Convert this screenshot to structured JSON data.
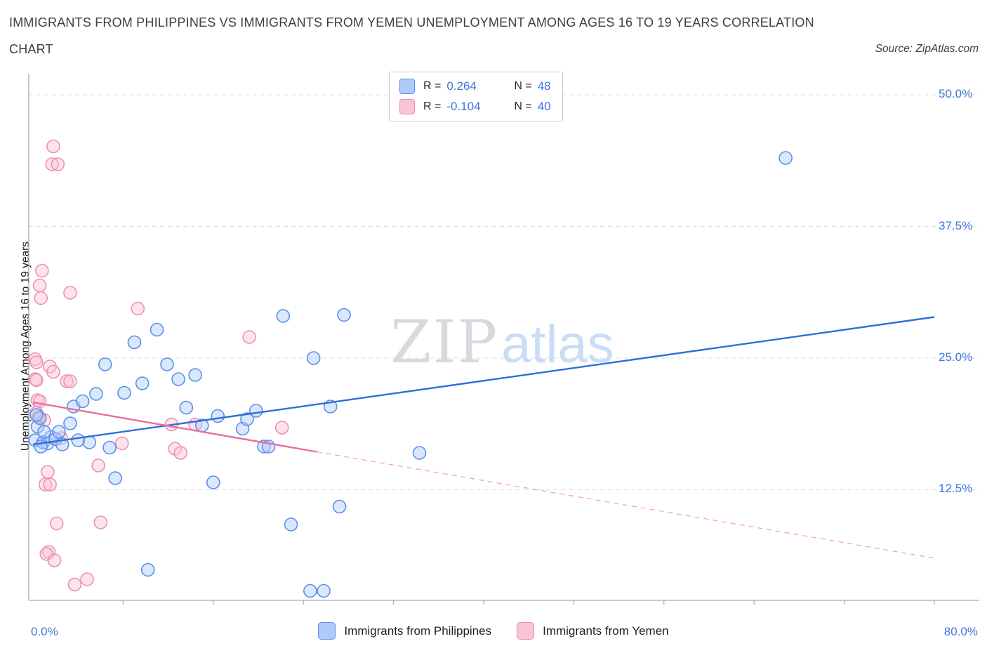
{
  "header": {
    "title_line1": "IMMIGRANTS FROM PHILIPPINES VS IMMIGRANTS FROM YEMEN UNEMPLOYMENT AMONG AGES 16 TO 19 YEARS CORRELATION",
    "title_line2": "CHART",
    "source": "Source: ZipAtlas.com"
  },
  "legend_box": {
    "rows": [
      {
        "series": "philippines",
        "r_label": "R =",
        "r_value": "0.264",
        "n_label": "N =",
        "n_value": "48"
      },
      {
        "series": "yemen",
        "r_label": "R =",
        "r_value": "-0.104",
        "n_label": "N =",
        "n_value": "40"
      }
    ]
  },
  "watermark": {
    "zip": "ZIP",
    "atlas": "atlas"
  },
  "axes": {
    "y_label": "Unemployment Among Ages 16 to 19 years",
    "y_ticks": [
      {
        "value": 50,
        "label": "50.0%"
      },
      {
        "value": 37.5,
        "label": "37.5%"
      },
      {
        "value": 25,
        "label": "25.0%"
      },
      {
        "value": 12.5,
        "label": "12.5%"
      }
    ],
    "x_min_label": "0.0%",
    "x_max_label": "80.0%"
  },
  "bottom_legend": [
    {
      "series": "philippines",
      "label": "Immigrants from Philippines"
    },
    {
      "series": "yemen",
      "label": "Immigrants from Yemen"
    }
  ],
  "colors": {
    "philippines_fill": "#AECBFA",
    "philippines_stroke": "#5E8FE8",
    "philippines_trend": "#2E6FD8",
    "yemen_fill": "#F9C4D8",
    "yemen_stroke": "#EE8FB4",
    "yemen_trend": "#E8709A",
    "axis_label_blue": "#3D77D9",
    "grid": "#DCDCDC",
    "axis_line": "#A6ABB0"
  },
  "chart_data": {
    "type": "scatter",
    "title": "Immigrants from Philippines vs Immigrants from Yemen Unemployment Among Ages 16 to 19 years Correlation Chart",
    "xlabel": "",
    "ylabel": "Unemployment Among Ages 16 to 19 years",
    "x_range": [
      0,
      80
    ],
    "y_range": [
      2,
      52
    ],
    "gridlines_y": [
      12.5,
      25,
      37.5,
      50
    ],
    "x_tick_step": 8,
    "legend_position": "bottom",
    "series": [
      {
        "id": "philippines",
        "name": "Immigrants from Philippines",
        "r": 0.264,
        "n": 48,
        "points": [
          [
            0.2,
            17.2
          ],
          [
            0.4,
            18.5
          ],
          [
            0.6,
            19.3
          ],
          [
            0.9,
            17.0
          ],
          [
            1.3,
            16.9
          ],
          [
            1.6,
            17.5
          ],
          [
            2.0,
            17.3
          ],
          [
            3.3,
            18.8
          ],
          [
            3.6,
            20.4
          ],
          [
            4.4,
            20.9
          ],
          [
            2.6,
            16.8
          ],
          [
            5.0,
            17.0
          ],
          [
            5.6,
            21.6
          ],
          [
            6.4,
            24.4
          ],
          [
            6.8,
            16.5
          ],
          [
            7.3,
            13.6
          ],
          [
            8.1,
            21.7
          ],
          [
            9.0,
            26.5
          ],
          [
            9.7,
            22.6
          ],
          [
            10.2,
            4.9
          ],
          [
            11.0,
            27.7
          ],
          [
            11.9,
            24.4
          ],
          [
            12.9,
            23.0
          ],
          [
            13.6,
            20.3
          ],
          [
            14.4,
            23.4
          ],
          [
            15.0,
            18.6
          ],
          [
            16.0,
            13.2
          ],
          [
            16.4,
            19.5
          ],
          [
            18.6,
            18.3
          ],
          [
            19.0,
            19.2
          ],
          [
            19.8,
            20.0
          ],
          [
            20.5,
            16.6
          ],
          [
            20.9,
            16.6
          ],
          [
            22.2,
            29.0
          ],
          [
            22.9,
            9.2
          ],
          [
            24.6,
            2.9
          ],
          [
            25.8,
            2.9
          ],
          [
            24.9,
            25.0
          ],
          [
            26.4,
            20.4
          ],
          [
            27.6,
            29.1
          ],
          [
            27.2,
            10.9
          ],
          [
            34.3,
            16.0
          ],
          [
            66.8,
            44.0
          ],
          [
            0.3,
            19.6
          ],
          [
            1.0,
            18.0
          ],
          [
            2.3,
            18.0
          ],
          [
            4.0,
            17.2
          ],
          [
            0.7,
            16.6
          ]
        ],
        "trend_solid": [
          [
            0,
            16.8
          ],
          [
            80,
            28.9
          ]
        ],
        "trend_dashed": null
      },
      {
        "id": "yemen",
        "name": "Immigrants from Yemen",
        "r": -0.104,
        "n": 40,
        "points": [
          [
            1.8,
            45.1
          ],
          [
            1.7,
            43.4
          ],
          [
            2.2,
            43.4
          ],
          [
            0.8,
            33.3
          ],
          [
            0.6,
            31.9
          ],
          [
            0.7,
            30.7
          ],
          [
            3.3,
            31.2
          ],
          [
            9.3,
            29.7
          ],
          [
            19.2,
            27.0
          ],
          [
            0.2,
            24.9
          ],
          [
            0.3,
            24.6
          ],
          [
            0.2,
            23.0
          ],
          [
            0.3,
            22.9
          ],
          [
            1.5,
            24.2
          ],
          [
            1.8,
            23.7
          ],
          [
            3.0,
            22.8
          ],
          [
            3.3,
            22.8
          ],
          [
            0.4,
            21.0
          ],
          [
            0.6,
            20.9
          ],
          [
            0.3,
            19.8
          ],
          [
            0.5,
            19.4
          ],
          [
            1.0,
            19.1
          ],
          [
            2.5,
            17.4
          ],
          [
            7.9,
            16.9
          ],
          [
            12.3,
            18.7
          ],
          [
            14.4,
            18.7
          ],
          [
            22.1,
            18.4
          ],
          [
            12.6,
            16.4
          ],
          [
            13.1,
            16.0
          ],
          [
            5.8,
            14.8
          ],
          [
            1.3,
            14.2
          ],
          [
            1.1,
            13.0
          ],
          [
            1.5,
            13.0
          ],
          [
            2.1,
            9.3
          ],
          [
            6.0,
            9.4
          ],
          [
            1.4,
            6.6
          ],
          [
            1.2,
            6.4
          ],
          [
            1.9,
            5.8
          ],
          [
            3.7,
            3.5
          ],
          [
            4.8,
            4.0
          ]
        ],
        "trend_solid": [
          [
            0,
            20.8
          ],
          [
            25.2,
            16.1
          ]
        ],
        "trend_dashed": [
          [
            25.2,
            16.1
          ],
          [
            80,
            6.0
          ]
        ]
      }
    ]
  }
}
